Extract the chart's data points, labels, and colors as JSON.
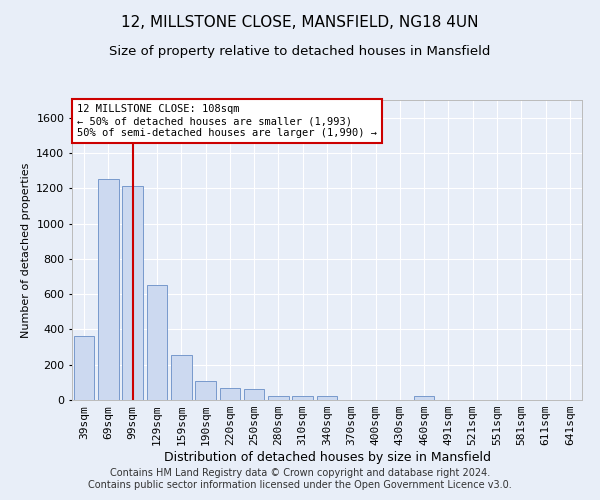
{
  "title1": "12, MILLSTONE CLOSE, MANSFIELD, NG18 4UN",
  "title2": "Size of property relative to detached houses in Mansfield",
  "xlabel": "Distribution of detached houses by size in Mansfield",
  "ylabel": "Number of detached properties",
  "categories": [
    "39sqm",
    "69sqm",
    "99sqm",
    "129sqm",
    "159sqm",
    "190sqm",
    "220sqm",
    "250sqm",
    "280sqm",
    "310sqm",
    "340sqm",
    "370sqm",
    "400sqm",
    "430sqm",
    "460sqm",
    "491sqm",
    "521sqm",
    "551sqm",
    "581sqm",
    "611sqm",
    "641sqm"
  ],
  "values": [
    360,
    1250,
    1210,
    650,
    255,
    105,
    70,
    60,
    25,
    20,
    25,
    0,
    0,
    0,
    25,
    0,
    0,
    0,
    0,
    0,
    0
  ],
  "bar_color": "#ccd9f0",
  "bar_edge_color": "#7799cc",
  "annotation_text_line1": "12 MILLSTONE CLOSE: 108sqm",
  "annotation_text_line2": "← 50% of detached houses are smaller (1,993)",
  "annotation_text_line3": "50% of semi-detached houses are larger (1,990) →",
  "annotation_box_facecolor": "#ffffff",
  "annotation_box_edgecolor": "#cc0000",
  "red_line_color": "#cc0000",
  "footer_text": "Contains HM Land Registry data © Crown copyright and database right 2024.\nContains public sector information licensed under the Open Government Licence v3.0.",
  "ylim": [
    0,
    1700
  ],
  "yticks": [
    0,
    200,
    400,
    600,
    800,
    1000,
    1200,
    1400,
    1600
  ],
  "background_color": "#e8eef8",
  "plot_bg_color": "#e8eef8",
  "grid_color": "#ffffff",
  "title1_fontsize": 11,
  "title2_fontsize": 9.5,
  "xlabel_fontsize": 9,
  "ylabel_fontsize": 8,
  "tick_fontsize": 8,
  "ann_fontsize": 7.5,
  "footer_fontsize": 7
}
